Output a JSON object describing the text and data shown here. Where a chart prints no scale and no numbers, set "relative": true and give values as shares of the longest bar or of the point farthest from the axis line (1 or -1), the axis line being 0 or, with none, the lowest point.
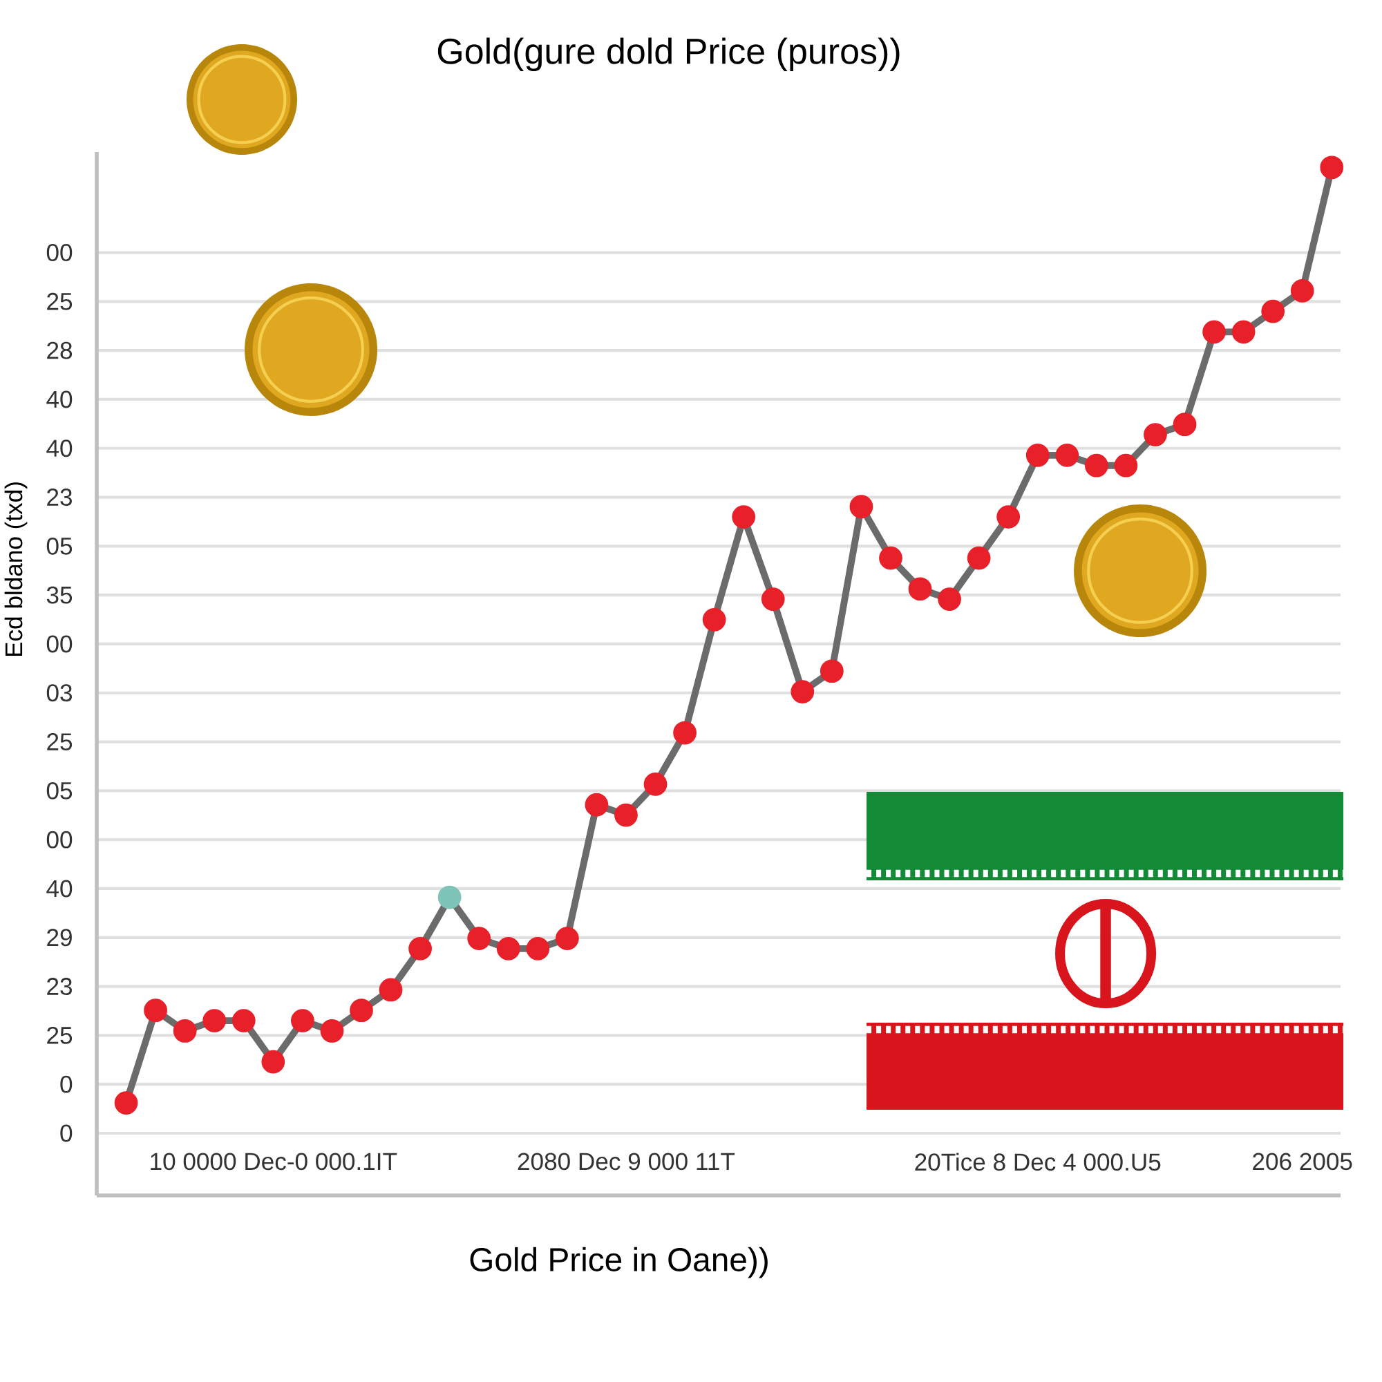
{
  "chart_data": {
    "type": "line",
    "title": "Gold(gure dold Price (puros))",
    "xlabel": "Gold Price in Oane))",
    "ylabel": "Ecd bldano (txd)",
    "relative": true,
    "categories": [
      null,
      null,
      null,
      null,
      null,
      "10 0000 Dec-0 000.1IT",
      null,
      null,
      null,
      null,
      null,
      null,
      null,
      null,
      null,
      null,
      null,
      "2080 Dec 9 000 11T",
      null,
      null,
      null,
      null,
      null,
      null,
      null,
      null,
      null,
      null,
      null,
      null,
      null,
      "20Tice 8 Dec 4 000.U5",
      null,
      null,
      null,
      null,
      null,
      null,
      null,
      null,
      "206 2005",
      null
    ],
    "series": [
      {
        "color": "#6b6b6b",
        "values": [
          0.09,
          0.18,
          0.16,
          0.17,
          0.17,
          0.13,
          0.17,
          0.16,
          0.18,
          0.2,
          0.24,
          0.29,
          0.25,
          0.24,
          0.24,
          0.25,
          0.38,
          0.37,
          0.4,
          0.45,
          0.56,
          0.66,
          0.58,
          0.49,
          0.51,
          0.67,
          0.62,
          0.59,
          0.58,
          0.62,
          0.66,
          0.72,
          0.72,
          0.71,
          0.71,
          0.74,
          0.75,
          0.84,
          0.84,
          0.86,
          0.88,
          1
        ],
        "colors": [
          "#e8202a",
          "#e8202a",
          "#e8202a",
          "#e8202a",
          "#e8202a",
          "#e8202a",
          "#e8202a",
          "#e8202a",
          "#e8202a",
          "#e8202a",
          "#e8202a",
          "#7fc4b8",
          "#e8202a",
          "#e8202a",
          "#e8202a",
          "#e8202a",
          "#e8202a",
          "#e8202a",
          "#e8202a",
          "#e8202a",
          "#e8202a",
          "#e8202a",
          "#e8202a",
          "#e8202a",
          "#e8202a",
          "#e8202a",
          "#e8202a",
          "#e8202a",
          "#e8202a",
          "#e8202a",
          "#e8202a",
          "#e8202a",
          "#e8202a",
          "#e8202a",
          "#e8202a",
          "#e8202a",
          "#e8202a",
          "#e8202a",
          "#e8202a",
          "#e8202a",
          "#e8202a",
          "#e8202a"
        ]
      }
    ],
    "annotations": [
      "0",
      "0",
      "25",
      "23",
      "29",
      "40",
      "00",
      "05",
      "25",
      "03",
      "00",
      "35",
      "05",
      "23",
      "40",
      "40",
      "28",
      "25",
      "00"
    ],
    "grid": "y",
    "marker": "circle"
  }
}
